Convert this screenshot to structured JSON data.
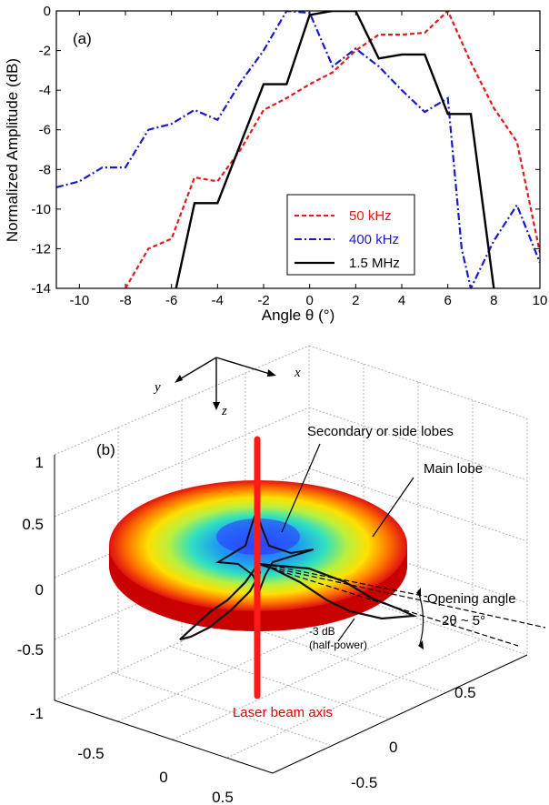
{
  "chart_data": [
    {
      "type": "line",
      "panel_label": "(a)",
      "xlabel": "Angle θ (°)",
      "ylabel": "Normalized Amplitude (dB)",
      "xlim": [
        -11,
        10
      ],
      "ylim": [
        -14,
        0
      ],
      "xticks": [
        -10,
        -8,
        -6,
        -4,
        -2,
        0,
        2,
        4,
        6,
        8,
        10
      ],
      "yticks": [
        0,
        -2,
        -4,
        -6,
        -8,
        -10,
        -12,
        -14
      ],
      "legend_position": "lower-right",
      "series": [
        {
          "name": "50 kHz",
          "color": "#e31a1c",
          "style": "dashed",
          "x": [
            -8,
            -7,
            -6,
            -5,
            -4,
            -3,
            -2,
            -1,
            0,
            1,
            2,
            3,
            4,
            5,
            6,
            7,
            8,
            9,
            10
          ],
          "y": [
            -14,
            -12,
            -11.5,
            -8.4,
            -8.6,
            -7.0,
            -5.0,
            -4.4,
            -3.7,
            -3.1,
            -2.0,
            -1.2,
            -1.2,
            -1.1,
            0,
            -2.6,
            -4.9,
            -6.6,
            -12.2
          ]
        },
        {
          "name": "400 kHz",
          "color": "#1a1acc",
          "style": "dashdot",
          "x": [
            -11,
            -10,
            -9,
            -8,
            -7,
            -6,
            -5,
            -4,
            -3,
            -2,
            -1,
            0,
            1,
            2,
            3,
            4,
            5,
            6,
            6.6,
            7,
            8,
            9,
            10
          ],
          "y": [
            -8.9,
            -8.6,
            -7.9,
            -7.9,
            -6.0,
            -5.7,
            -5.0,
            -5.5,
            -3.6,
            -2.0,
            0,
            -0.1,
            -2.8,
            -1.9,
            -2.8,
            -4.0,
            -5.1,
            -4.4,
            -12,
            -14,
            -11.6,
            -9.8,
            -12.7
          ]
        },
        {
          "name": "1.5 MHz",
          "color": "#000000",
          "style": "solid",
          "x": [
            -5.8,
            -5,
            -4,
            -3.5,
            -2,
            -1,
            0,
            1,
            2,
            3,
            4,
            5,
            6,
            7,
            8
          ],
          "y": [
            -14,
            -9.7,
            -9.7,
            -8.2,
            -3.7,
            -3.7,
            -0.2,
            0,
            0,
            -2.4,
            -2.2,
            -2.2,
            -5.2,
            -5.2,
            -14
          ]
        }
      ]
    },
    {
      "type": "other",
      "panel_label": "(b)",
      "zticks": [
        "1",
        "0.5",
        "0",
        "-0.5",
        "-1"
      ],
      "xticks_front": [
        "-0.5",
        "0",
        "0.5"
      ],
      "yticks_right": [
        "0.5",
        "0",
        "-0.5"
      ],
      "axis_names": {
        "x": "x",
        "y": "y",
        "z": "z"
      },
      "annotations": {
        "side_lobes": "Secondary or side lobes",
        "main_lobe": "Main lobe",
        "opening_angle": "Opening angle",
        "opening_value": "2θ ~ 5°",
        "minus3db": "-3 dB",
        "half_power": "(half-power)",
        "laser_axis": "Laser beam axis"
      }
    }
  ]
}
